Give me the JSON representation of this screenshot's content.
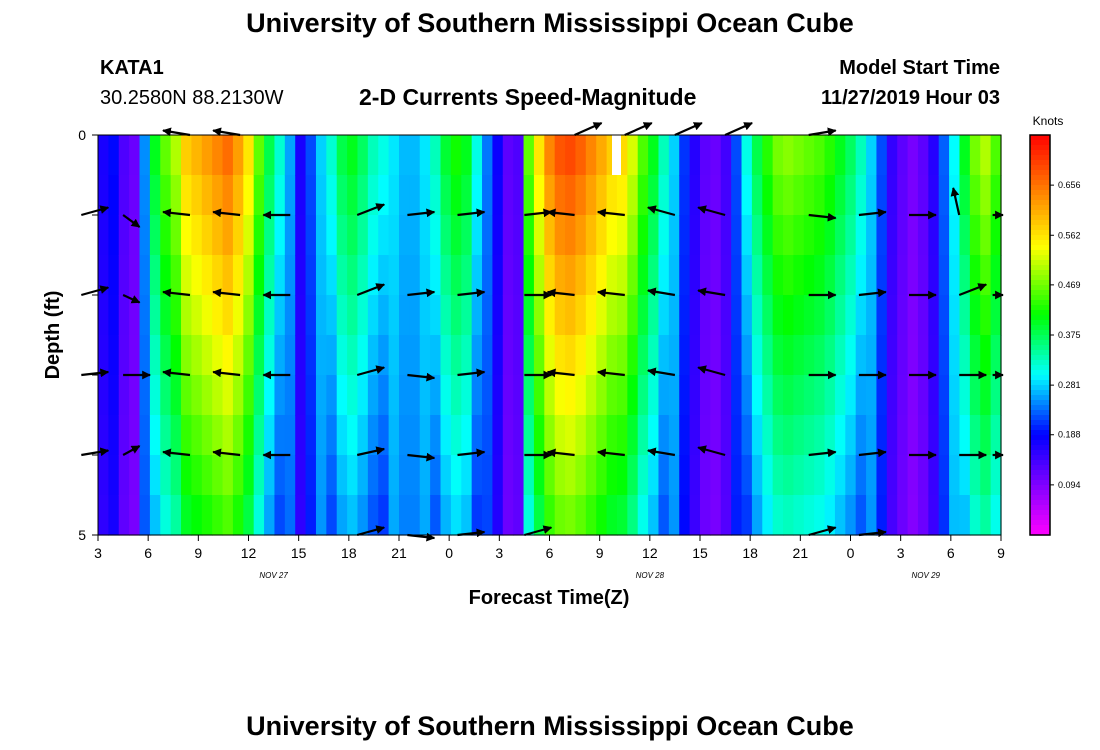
{
  "header": {
    "title": "University of Southern Mississippi Ocean Cube",
    "station_id": "KATA1",
    "station_coords": "30.2580N 88.2130W",
    "model_start_label": "Model Start Time",
    "model_start_value": "11/27/2019 Hour 03"
  },
  "footer": {
    "title": "University of Southern Mississippi Ocean Cube"
  },
  "chart_data": {
    "type": "heatmap",
    "title": "2-D Currents Speed-Magnitude",
    "xlabel": "Forecast Time(Z)",
    "ylabel": "Depth (ft)",
    "colorbar_unit": "Knots",
    "colorbar_ticks": [
      "0.656",
      "0.562",
      "0.469",
      "0.375",
      "0.281",
      "0.188",
      "0.094"
    ],
    "colorbar_range": [
      0,
      0.75
    ],
    "x_hours_range": [
      0,
      54
    ],
    "x_tick_hours": [
      0,
      3,
      6,
      9,
      12,
      15,
      18,
      21,
      24,
      27,
      30,
      33,
      36,
      39,
      42,
      45,
      48,
      51,
      54
    ],
    "x_tick_labels": [
      "3",
      "6",
      "9",
      "12",
      "15",
      "18",
      "21",
      "0",
      "3",
      "6",
      "9",
      "12",
      "15",
      "18",
      "21",
      "0",
      "3",
      "6",
      "9"
    ],
    "date_labels": [
      {
        "text": "NOV  27",
        "hour": 10.5
      },
      {
        "text": "NOV  28",
        "hour": 33
      },
      {
        "text": "NOV  29",
        "hour": 49.5
      }
    ],
    "y_ticks": [
      "0",
      "5"
    ],
    "ylim": [
      0,
      5
    ],
    "speed_by_hour": [
      0.17,
      0.19,
      0.13,
      0.11,
      0.25,
      0.4,
      0.46,
      0.5,
      0.58,
      0.6,
      0.62,
      0.64,
      0.66,
      0.62,
      0.56,
      0.46,
      0.38,
      0.32,
      0.26,
      0.17,
      0.22,
      0.28,
      0.32,
      0.38,
      0.4,
      0.37,
      0.33,
      0.31,
      0.29,
      0.27,
      0.27,
      0.29,
      0.33,
      0.39,
      0.42,
      0.4,
      0.31,
      0.24,
      0.18,
      0.12,
      0.13,
      0.46,
      0.56,
      0.64,
      0.68,
      0.69,
      0.67,
      0.64,
      0.61,
      0.58,
      0.57,
      0.52,
      0.45,
      0.4,
      0.33,
      0.28,
      0.21,
      0.16,
      0.12,
      0.11,
      0.14,
      0.22,
      0.31,
      0.38,
      0.43,
      0.47,
      0.48,
      0.47,
      0.46,
      0.45,
      0.43,
      0.4,
      0.37,
      0.33,
      0.28,
      0.22,
      0.15,
      0.12,
      0.1,
      0.12,
      0.16,
      0.23,
      0.3,
      0.4,
      0.47,
      0.5,
      0.45
    ],
    "vector_hours": [
      -1,
      1.5,
      5.5,
      8.5,
      11.5,
      15.5,
      18.5,
      21.5,
      25.5,
      28.5,
      31.5,
      34.5,
      37.5,
      42.5,
      45.5,
      48.5,
      51.5,
      53.5
    ],
    "vector_depths": [
      0,
      1,
      2,
      3,
      4,
      5
    ],
    "vectors_by_depth": [
      [
        [
          0,
          0
        ],
        [
          0,
          0
        ],
        [
          -1.8,
          -0.3
        ],
        [
          -1.8,
          -0.3
        ],
        [
          0,
          0
        ],
        [
          0,
          0
        ],
        [
          0,
          0
        ],
        [
          0,
          0
        ],
        [
          0,
          0
        ],
        [
          1.8,
          -0.8
        ],
        [
          1.8,
          -0.8
        ],
        [
          1.8,
          -0.8
        ],
        [
          1.8,
          -0.8
        ],
        [
          1.8,
          -0.3
        ],
        [
          0,
          0
        ],
        [
          0,
          0
        ],
        [
          0,
          0
        ],
        [
          0,
          0
        ]
      ],
      [
        [
          1.8,
          -0.5
        ],
        [
          1.1,
          0.8
        ],
        [
          -1.8,
          -0.2
        ],
        [
          -1.8,
          -0.2
        ],
        [
          -1.8,
          0
        ],
        [
          1.8,
          -0.7
        ],
        [
          1.8,
          -0.2
        ],
        [
          1.8,
          -0.2
        ],
        [
          1.8,
          -0.2
        ],
        [
          -1.8,
          -0.2
        ],
        [
          -1.8,
          -0.2
        ],
        [
          -1.8,
          -0.5
        ],
        [
          -1.8,
          -0.5
        ],
        [
          1.8,
          0.2
        ],
        [
          1.8,
          -0.2
        ],
        [
          1.8,
          0
        ],
        [
          -0.4,
          -1.8
        ],
        [
          1.8,
          0
        ]
      ],
      [
        [
          1.8,
          -0.5
        ],
        [
          1.1,
          0.5
        ],
        [
          -1.8,
          -0.2
        ],
        [
          -1.8,
          -0.2
        ],
        [
          -1.8,
          0
        ],
        [
          1.8,
          -0.7
        ],
        [
          1.8,
          -0.2
        ],
        [
          1.8,
          -0.2
        ],
        [
          1.8,
          0
        ],
        [
          -1.8,
          -0.2
        ],
        [
          -1.8,
          -0.2
        ],
        [
          -1.8,
          -0.3
        ],
        [
          -1.8,
          -0.3
        ],
        [
          1.8,
          0
        ],
        [
          1.8,
          -0.2
        ],
        [
          1.8,
          0
        ],
        [
          1.8,
          -0.7
        ],
        [
          1.8,
          0
        ]
      ],
      [
        [
          1.8,
          -0.2
        ],
        [
          1.8,
          0
        ],
        [
          -1.8,
          -0.2
        ],
        [
          -1.8,
          -0.2
        ],
        [
          -1.8,
          0
        ],
        [
          1.8,
          -0.5
        ],
        [
          1.8,
          0.2
        ],
        [
          1.8,
          -0.2
        ],
        [
          1.8,
          0
        ],
        [
          -1.8,
          -0.2
        ],
        [
          -1.8,
          -0.2
        ],
        [
          -1.8,
          -0.3
        ],
        [
          -1.8,
          -0.5
        ],
        [
          1.8,
          0
        ],
        [
          1.8,
          0
        ],
        [
          1.8,
          0
        ],
        [
          1.8,
          0
        ],
        [
          1.8,
          0
        ]
      ],
      [
        [
          1.8,
          -0.3
        ],
        [
          1.1,
          -0.6
        ],
        [
          -1.8,
          -0.2
        ],
        [
          -1.8,
          -0.2
        ],
        [
          -1.8,
          0
        ],
        [
          1.8,
          -0.4
        ],
        [
          1.8,
          0.2
        ],
        [
          1.8,
          -0.2
        ],
        [
          1.8,
          0
        ],
        [
          -1.8,
          -0.2
        ],
        [
          -1.8,
          -0.2
        ],
        [
          -1.8,
          -0.3
        ],
        [
          -1.8,
          -0.5
        ],
        [
          1.8,
          -0.2
        ],
        [
          1.8,
          -0.2
        ],
        [
          1.8,
          0
        ],
        [
          1.8,
          0
        ],
        [
          1.8,
          0
        ]
      ],
      [
        [
          0,
          0
        ],
        [
          0,
          0
        ],
        [
          0,
          0
        ],
        [
          0,
          0
        ],
        [
          0,
          0
        ],
        [
          1.8,
          -0.5
        ],
        [
          1.8,
          0.2
        ],
        [
          1.8,
          -0.2
        ],
        [
          1.8,
          -0.5
        ],
        [
          0,
          0
        ],
        [
          0,
          0
        ],
        [
          0,
          0
        ],
        [
          0,
          0
        ],
        [
          1.8,
          -0.5
        ],
        [
          1.8,
          -0.2
        ],
        [
          0,
          0
        ],
        [
          0,
          0
        ],
        [
          0,
          0
        ]
      ]
    ]
  }
}
